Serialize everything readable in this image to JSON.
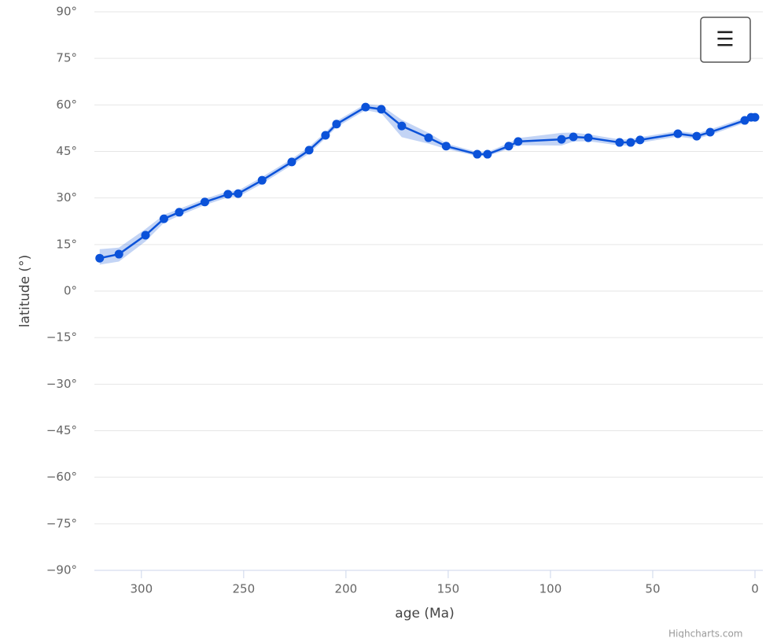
{
  "chart_data": {
    "type": "line",
    "x_label": "age (Ma)",
    "y_label": "latitude (°)",
    "credit": "Highcharts.com",
    "menu_icon": "☰",
    "color": "#0b52d9",
    "band_color": "rgba(40,100,220,0.28)",
    "x": [
      320.4,
      311,
      298,
      289,
      281.5,
      269,
      257.7,
      252.7,
      241,
      226.5,
      218,
      210,
      204.6,
      190.4,
      182.7,
      172.7,
      159.6,
      151,
      135.8,
      130.8,
      120.4,
      115.8,
      94.6,
      88.8,
      81.5,
      66.2,
      60.8,
      56.2,
      37.7,
      28.5,
      21.9,
      5,
      1.9,
      0
    ],
    "values": [
      10.6,
      11.9,
      18,
      23.3,
      25.4,
      28.7,
      31.2,
      31.4,
      35.7,
      41.6,
      45.4,
      50.2,
      53.8,
      59.3,
      58.6,
      53.2,
      49.4,
      46.7,
      44.1,
      44.1,
      46.7,
      48.2,
      48.9,
      49.7,
      49.4,
      47.9,
      47.9,
      48.7,
      50.7,
      49.9,
      51.2,
      55,
      56,
      56
    ],
    "low": [
      8.5,
      9.5,
      16,
      22,
      24.3,
      27.7,
      30.2,
      30.4,
      34.6,
      40.6,
      44.3,
      49.2,
      52.8,
      58.3,
      57.3,
      49.6,
      47.5,
      45.8,
      43.5,
      43.5,
      45.8,
      47,
      46.9,
      48.2,
      48.3,
      46.9,
      46.9,
      47.8,
      49.8,
      49,
      50.3,
      54.2,
      55.2,
      55.2
    ],
    "high": [
      13.5,
      14,
      20,
      24.6,
      26.5,
      29.7,
      32.2,
      32.4,
      36.8,
      42.6,
      46.5,
      51.2,
      54.8,
      60.3,
      59.8,
      55.2,
      51,
      47.6,
      44.8,
      44.8,
      47.7,
      49.3,
      51,
      51.1,
      50.5,
      48.9,
      48.9,
      49.6,
      51.6,
      50.8,
      52.1,
      55.9,
      56.8,
      56.8
    ],
    "xlim": [
      323,
      0
    ],
    "ylim": [
      -90,
      90
    ],
    "xticks": [
      300,
      250,
      200,
      150,
      100,
      50,
      0
    ],
    "yticks": [
      {
        "value": -90,
        "label": "−90°"
      },
      {
        "value": -75,
        "label": "−75°"
      },
      {
        "value": -60,
        "label": "−60°"
      },
      {
        "value": -45,
        "label": "−45°"
      },
      {
        "value": -30,
        "label": "−30°"
      },
      {
        "value": -15,
        "label": "−15°"
      },
      {
        "value": 0,
        "label": "0°"
      },
      {
        "value": 15,
        "label": "15°"
      },
      {
        "value": 30,
        "label": "30°"
      },
      {
        "value": 45,
        "label": "45°"
      },
      {
        "value": 60,
        "label": "60°"
      },
      {
        "value": 75,
        "label": "75°"
      },
      {
        "value": 90,
        "label": "90°"
      }
    ],
    "grid": true
  }
}
